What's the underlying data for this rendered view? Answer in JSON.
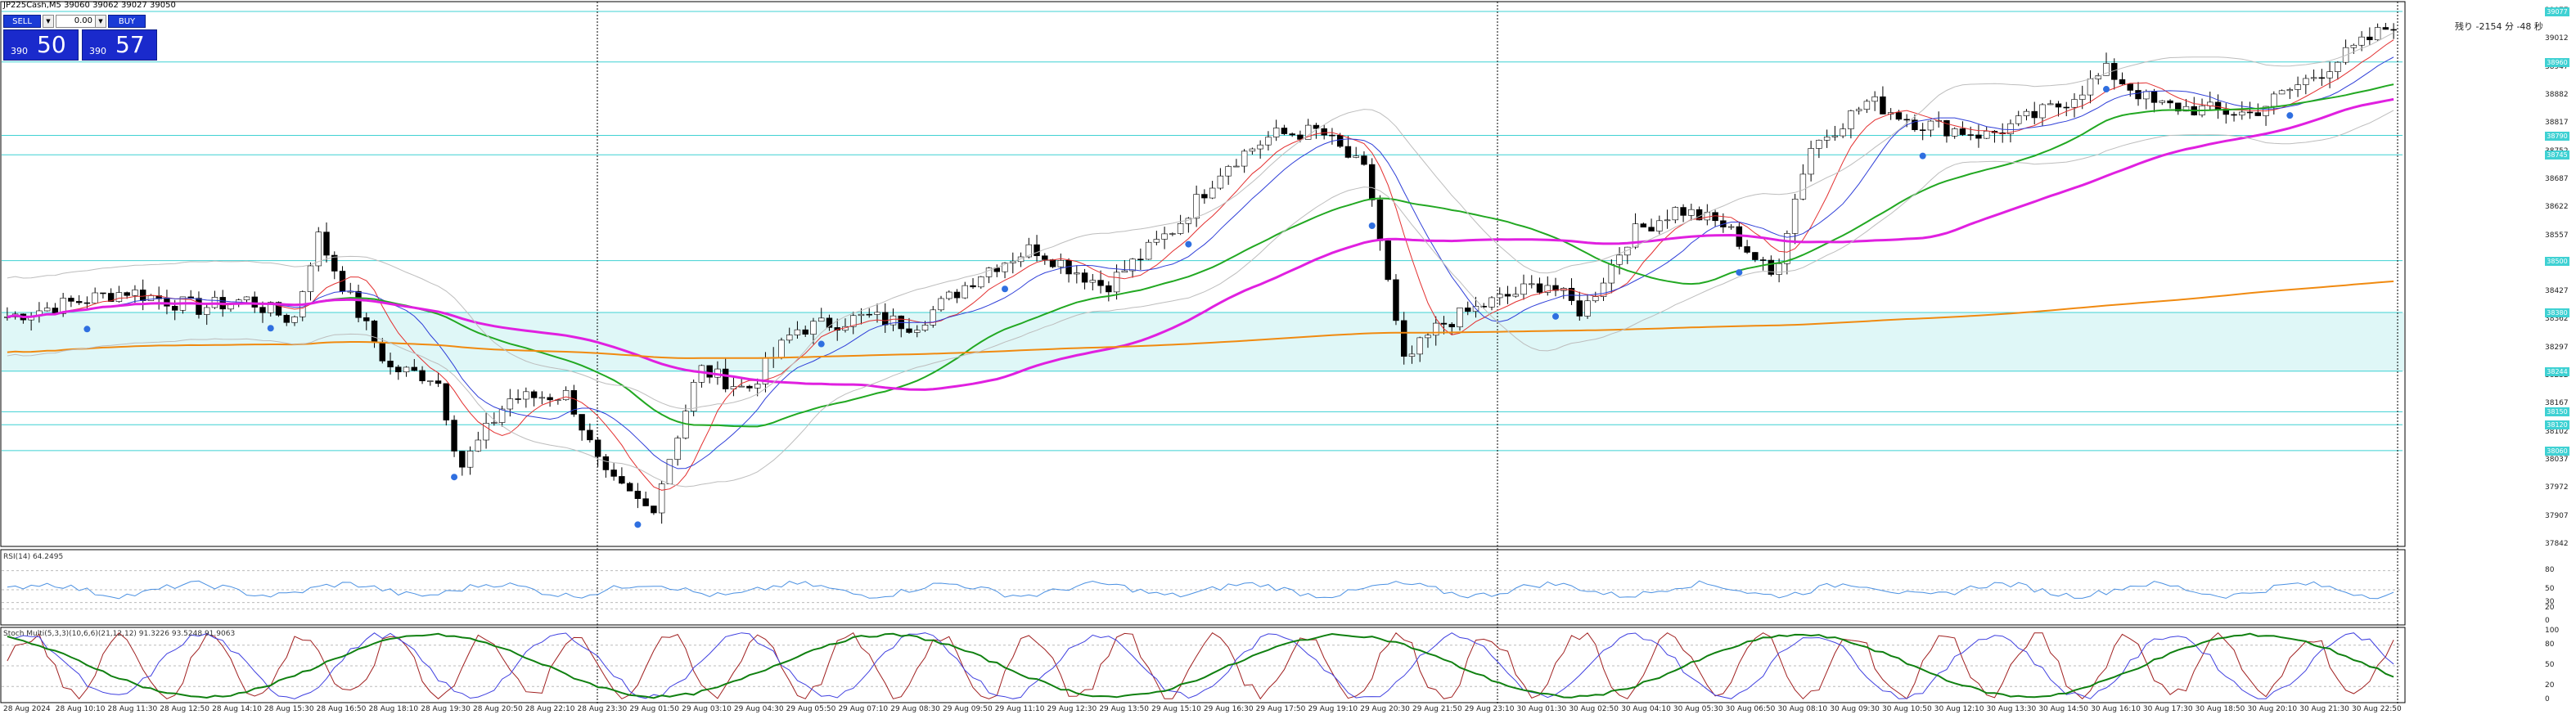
{
  "window": {
    "title": "JP225Cash,M5  39060 39062 39027 39050"
  },
  "trade_panel": {
    "sell_label": "SELL",
    "buy_label": "BUY",
    "lot": "0.00",
    "sell_prefix": "390",
    "sell_big": "50",
    "buy_prefix": "390",
    "buy_big": "57"
  },
  "corner_note": "残り -2154 分 -48 秒",
  "price_axis": [
    "39077",
    "39012",
    "38947",
    "38882",
    "38817",
    "38752",
    "38687",
    "38622",
    "38557",
    "38492",
    "38427",
    "38362",
    "38297",
    "38232",
    "38167",
    "38102",
    "38037",
    "37972",
    "37907",
    "37842"
  ],
  "level_badges": [
    "39077",
    "38960",
    "38790",
    "38745",
    "38500",
    "38380",
    "38244",
    "38150",
    "38120",
    "38060"
  ],
  "rsi": {
    "label": "RSI(14) 64.2495",
    "levels": [
      "80",
      "50",
      "30",
      "20",
      "0"
    ],
    "current": 64.2495
  },
  "stoch": {
    "label": "Stoch Multi(5,3,3)(10,6,6)(21,12,12) 91.3226 93.5248 91.9063",
    "levels": [
      "100",
      "80",
      "50",
      "20",
      "0"
    ]
  },
  "time_axis": [
    "28 Aug 2024",
    "28 Aug 10:10",
    "28 Aug 11:30",
    "28 Aug 12:50",
    "28 Aug 14:10",
    "28 Aug 15:30",
    "28 Aug 16:50",
    "28 Aug 18:10",
    "28 Aug 19:30",
    "28 Aug 20:50",
    "28 Aug 22:10",
    "28 Aug 23:30",
    "29 Aug 01:50",
    "29 Aug 03:10",
    "29 Aug 04:30",
    "29 Aug 05:50",
    "29 Aug 07:10",
    "29 Aug 08:30",
    "29 Aug 09:50",
    "29 Aug 11:10",
    "29 Aug 12:30",
    "29 Aug 13:50",
    "29 Aug 15:10",
    "29 Aug 16:30",
    "29 Aug 17:50",
    "29 Aug 19:10",
    "29 Aug 20:30",
    "29 Aug 21:50",
    "29 Aug 23:10",
    "30 Aug 01:30",
    "30 Aug 02:50",
    "30 Aug 04:10",
    "30 Aug 05:30",
    "30 Aug 06:50",
    "30 Aug 08:10",
    "30 Aug 09:30",
    "30 Aug 10:50",
    "30 Aug 12:10",
    "30 Aug 13:30",
    "30 Aug 14:50",
    "30 Aug 16:10",
    "30 Aug 17:30",
    "30 Aug 18:50",
    "30 Aug 20:10",
    "30 Aug 21:30",
    "30 Aug 22:50"
  ],
  "colors": {
    "candle": "#000000",
    "ma_magenta": "#e020e0",
    "ma_green": "#22a822",
    "ma_orange": "#f08a10",
    "ma_blue": "#2f3fd8",
    "ma_red": "#e33030",
    "band_gray": "#bdbdbd",
    "zone_fill": "#dff7f7",
    "level_cyan": "#3fd1d3",
    "rsi_line": "#4a90e2",
    "stoch_red": "#a02020",
    "stoch_blue": "#4040e0",
    "stoch_green": "#108010",
    "panel_blue": "#1a2acc"
  },
  "chart_data": {
    "type": "candlestick",
    "symbol": "JP225Cash",
    "timeframe": "M5",
    "ylim": [
      37842,
      39077
    ],
    "price_path_anchors": [
      [
        0,
        38370
      ],
      [
        0.05,
        38430
      ],
      [
        0.08,
        38390
      ],
      [
        0.1,
        38410
      ],
      [
        0.12,
        38360
      ],
      [
        0.13,
        38560
      ],
      [
        0.14,
        38450
      ],
      [
        0.16,
        38250
      ],
      [
        0.18,
        38230
      ],
      [
        0.19,
        38020
      ],
      [
        0.21,
        38180
      ],
      [
        0.235,
        38190
      ],
      [
        0.25,
        38000
      ],
      [
        0.27,
        37920
      ],
      [
        0.29,
        38250
      ],
      [
        0.31,
        38200
      ],
      [
        0.33,
        38340
      ],
      [
        0.36,
        38370
      ],
      [
        0.38,
        38350
      ],
      [
        0.41,
        38480
      ],
      [
        0.43,
        38530
      ],
      [
        0.46,
        38440
      ],
      [
        0.49,
        38580
      ],
      [
        0.51,
        38720
      ],
      [
        0.53,
        38790
      ],
      [
        0.55,
        38800
      ],
      [
        0.57,
        38700
      ],
      [
        0.585,
        38260
      ],
      [
        0.6,
        38350
      ],
      [
        0.62,
        38400
      ],
      [
        0.645,
        38450
      ],
      [
        0.66,
        38380
      ],
      [
        0.68,
        38560
      ],
      [
        0.7,
        38620
      ],
      [
        0.72,
        38580
      ],
      [
        0.74,
        38460
      ],
      [
        0.755,
        38760
      ],
      [
        0.78,
        38870
      ],
      [
        0.8,
        38820
      ],
      [
        0.83,
        38790
      ],
      [
        0.86,
        38860
      ],
      [
        0.88,
        38940
      ],
      [
        0.9,
        38860
      ],
      [
        0.94,
        38840
      ],
      [
        0.97,
        38940
      ],
      [
        1.0,
        39050
      ]
    ]
  }
}
